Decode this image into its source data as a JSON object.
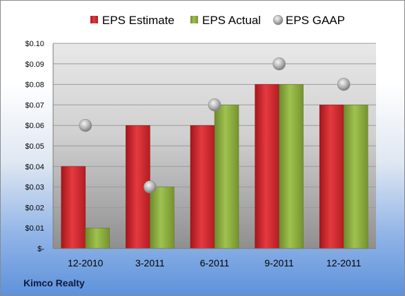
{
  "company_label": "Kimco Realty",
  "colors": {
    "estimate": "#d7262b",
    "actual": "#8fb043",
    "gaap": "#a6a6a6"
  },
  "chart_data": {
    "type": "bar",
    "categories": [
      "12-2010",
      "3-2011",
      "6-2011",
      "9-2011",
      "12-2011"
    ],
    "series": [
      {
        "name": "EPS Estimate",
        "type": "bar",
        "values": [
          0.04,
          0.06,
          0.06,
          0.08,
          0.07
        ]
      },
      {
        "name": "EPS Actual",
        "type": "bar",
        "values": [
          0.01,
          0.03,
          0.07,
          0.08,
          0.07
        ]
      },
      {
        "name": "EPS GAAP",
        "type": "scatter",
        "values": [
          0.06,
          0.03,
          0.07,
          0.09,
          0.08
        ]
      }
    ],
    "ylim": [
      0,
      0.1
    ],
    "yticks": [
      0,
      0.01,
      0.02,
      0.03,
      0.04,
      0.05,
      0.06,
      0.07,
      0.08,
      0.09,
      0.1
    ],
    "ytick_labels": [
      "$-",
      "$0.01",
      "$0.02",
      "$0.03",
      "$0.04",
      "$0.05",
      "$0.06",
      "$0.07",
      "$0.08",
      "$0.09",
      "$0.10"
    ],
    "grid": true,
    "legend_position": "top"
  }
}
